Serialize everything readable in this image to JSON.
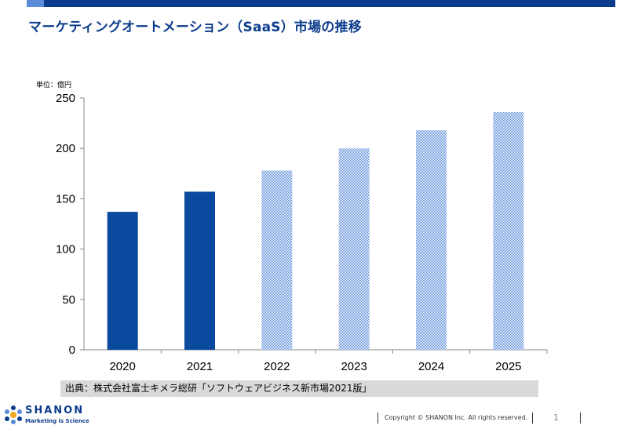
{
  "title": "マーケティングオートメーション（SaaS）市場の推移",
  "unit_label": "単位：億円",
  "source": "出典：株式会社富士キメラ総研「ソフトウェアビジネス新市場2021版」",
  "logo": {
    "name": "SHANON",
    "tagline": "Marketing is Science"
  },
  "footer": {
    "copyright": "Copyright © SHANON Inc. All rights reserved.",
    "page": "1"
  },
  "colors": {
    "brand": "#0c3d8c",
    "bar_actual": "#0a4a9e",
    "bar_forecast": "#5b8bd9"
  },
  "chart_data": {
    "type": "bar",
    "categories": [
      "2020",
      "2021",
      "2022",
      "2023",
      "2024",
      "2025"
    ],
    "values": [
      137,
      157,
      178,
      200,
      218,
      236
    ],
    "forecast": [
      false,
      false,
      true,
      true,
      true,
      true
    ],
    "title": "",
    "xlabel": "",
    "ylabel": "",
    "ylim": [
      0,
      250
    ],
    "yticks": [
      0,
      50,
      100,
      150,
      200,
      250
    ],
    "grid": false
  }
}
